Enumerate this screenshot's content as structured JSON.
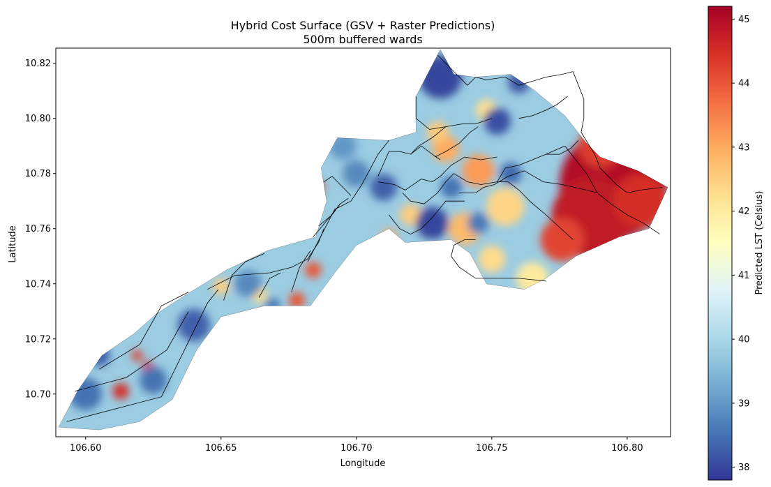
{
  "chart_data": {
    "type": "heatmap",
    "title": "Hybrid Cost Surface (GSV + Raster Predictions)",
    "subtitle": "500m buffered wards",
    "xlabel": "Longitude",
    "ylabel": "Latitude",
    "xlim": [
      106.589,
      106.816
    ],
    "ylim": [
      10.6845,
      10.8255
    ],
    "x_ticks": [
      106.6,
      106.65,
      106.7,
      106.75,
      106.8
    ],
    "x_tick_labels": [
      "106.60",
      "106.65",
      "106.70",
      "106.75",
      "106.80"
    ],
    "y_ticks": [
      10.7,
      10.72,
      10.74,
      10.76,
      10.78,
      10.8,
      10.82
    ],
    "y_tick_labels": [
      "10.70",
      "10.72",
      "10.74",
      "10.76",
      "10.78",
      "10.80",
      "10.82"
    ],
    "colorbar": {
      "label": "Predicted LST (Celsius)",
      "colormap": "RdYlBu_r",
      "range": [
        37.8,
        45.2
      ],
      "ticks": [
        38,
        39,
        40,
        41,
        42,
        43,
        44,
        45
      ],
      "tick_labels": [
        "38",
        "39",
        "40",
        "41",
        "42",
        "43",
        "44",
        "45"
      ],
      "colors": [
        "#313695",
        "#4575b4",
        "#74add1",
        "#abd9e9",
        "#e0f3f8",
        "#ffffbf",
        "#fee090",
        "#fdae61",
        "#f46d43",
        "#d73027",
        "#a50026"
      ]
    },
    "grid": false,
    "region_outline": [
      [
        106.59,
        10.688
      ],
      [
        106.597,
        10.701
      ],
      [
        106.606,
        10.714
      ],
      [
        106.618,
        10.722
      ],
      [
        106.626,
        10.729
      ],
      [
        106.637,
        10.736
      ],
      [
        106.652,
        10.745
      ],
      [
        106.667,
        10.752
      ],
      [
        106.685,
        10.757
      ],
      [
        106.689,
        10.77
      ],
      [
        106.687,
        10.782
      ],
      [
        106.693,
        10.793
      ],
      [
        106.712,
        10.792
      ],
      [
        106.722,
        10.795
      ],
      [
        106.722,
        10.808
      ],
      [
        106.731,
        10.825
      ],
      [
        106.736,
        10.816
      ],
      [
        106.744,
        10.815
      ],
      [
        106.757,
        10.816
      ],
      [
        106.766,
        10.81
      ],
      [
        106.777,
        10.801
      ],
      [
        106.785,
        10.791
      ],
      [
        106.79,
        10.786
      ],
      [
        106.804,
        10.781
      ],
      [
        106.815,
        10.775
      ],
      [
        106.808,
        10.76
      ],
      [
        106.797,
        10.757
      ],
      [
        106.781,
        10.75
      ],
      [
        106.77,
        10.742
      ],
      [
        106.762,
        10.738
      ],
      [
        106.748,
        10.74
      ],
      [
        106.742,
        10.751
      ],
      [
        106.735,
        10.756
      ],
      [
        106.718,
        10.755
      ],
      [
        106.712,
        10.76
      ],
      [
        106.7,
        10.754
      ],
      [
        106.692,
        10.744
      ],
      [
        106.683,
        10.732
      ],
      [
        106.666,
        10.732
      ],
      [
        106.65,
        10.728
      ],
      [
        106.641,
        10.716
      ],
      [
        106.632,
        10.698
      ],
      [
        106.62,
        10.69
      ],
      [
        106.605,
        10.687
      ],
      [
        106.59,
        10.688
      ]
    ],
    "ward_boundaries": [
      [
        [
          106.593,
          10.69
        ],
        [
          106.628,
          10.699
        ],
        [
          106.645,
          10.733
        ],
        [
          106.649,
          10.738
        ]
      ],
      [
        [
          106.596,
          10.701
        ],
        [
          106.615,
          10.706
        ],
        [
          106.63,
          10.716
        ],
        [
          106.638,
          10.73
        ]
      ],
      [
        [
          106.605,
          10.709
        ],
        [
          106.62,
          10.718
        ],
        [
          106.628,
          10.732
        ],
        [
          106.638,
          10.737
        ]
      ],
      [
        [
          106.645,
          10.738
        ],
        [
          106.655,
          10.743
        ],
        [
          106.668,
          10.744
        ],
        [
          106.676,
          10.746
        ],
        [
          106.682,
          10.749
        ],
        [
          106.686,
          10.755
        ],
        [
          106.688,
          10.76
        ]
      ],
      [
        [
          106.651,
          10.734
        ],
        [
          106.654,
          10.743
        ],
        [
          106.659,
          10.748
        ],
        [
          106.666,
          10.751
        ]
      ],
      [
        [
          106.664,
          10.735
        ],
        [
          106.668,
          10.742
        ],
        [
          106.672,
          10.744
        ]
      ],
      [
        [
          106.676,
          10.737
        ],
        [
          106.679,
          10.746
        ],
        [
          106.683,
          10.752
        ]
      ],
      [
        [
          106.682,
          10.748
        ],
        [
          106.692,
          10.767
        ],
        [
          106.698,
          10.77
        ],
        [
          106.702,
          10.776
        ],
        [
          106.708,
          10.787
        ],
        [
          106.712,
          10.792
        ]
      ],
      [
        [
          106.684,
          10.757
        ],
        [
          106.69,
          10.764
        ],
        [
          106.694,
          10.769
        ],
        [
          106.697,
          10.771
        ]
      ],
      [
        [
          106.686,
          10.761
        ],
        [
          106.691,
          10.765
        ],
        [
          106.694,
          10.769
        ]
      ],
      [
        [
          106.688,
          10.777
        ],
        [
          106.691,
          10.779
        ],
        [
          106.695,
          10.775
        ],
        [
          106.698,
          10.772
        ]
      ],
      [
        [
          106.708,
          10.779
        ],
        [
          106.712,
          10.788
        ],
        [
          106.716,
          10.788
        ],
        [
          106.72,
          10.787
        ],
        [
          106.723,
          10.79
        ]
      ],
      [
        [
          106.708,
          10.777
        ],
        [
          106.714,
          10.776
        ],
        [
          106.718,
          10.774
        ],
        [
          106.724,
          10.778
        ],
        [
          106.728,
          10.777
        ],
        [
          106.731,
          10.779
        ]
      ],
      [
        [
          106.72,
          10.787
        ],
        [
          106.724,
          10.79
        ],
        [
          106.728,
          10.787
        ],
        [
          106.731,
          10.785
        ]
      ],
      [
        [
          106.712,
          10.765
        ],
        [
          106.716,
          10.76
        ],
        [
          106.72,
          10.758
        ],
        [
          106.724,
          10.76
        ],
        [
          106.728,
          10.764
        ],
        [
          106.733,
          10.77
        ],
        [
          106.74,
          10.77
        ]
      ],
      [
        [
          106.717,
          10.773
        ],
        [
          106.72,
          10.77
        ],
        [
          106.725,
          10.769
        ],
        [
          106.73,
          10.773
        ],
        [
          106.733,
          10.777
        ],
        [
          106.736,
          10.78
        ]
      ],
      [
        [
          106.723,
          10.79
        ],
        [
          106.728,
          10.793
        ],
        [
          106.733,
          10.797
        ],
        [
          106.739,
          10.798
        ],
        [
          106.744,
          10.798
        ],
        [
          106.75,
          10.8
        ]
      ],
      [
        [
          106.729,
          10.786
        ],
        [
          106.733,
          10.788
        ],
        [
          106.738,
          10.791
        ],
        [
          106.742,
          10.795
        ],
        [
          106.745,
          10.797
        ]
      ],
      [
        [
          106.731,
          10.779
        ],
        [
          106.735,
          10.783
        ],
        [
          106.74,
          10.786
        ],
        [
          106.746,
          10.785
        ],
        [
          106.752,
          10.786
        ]
      ],
      [
        [
          106.736,
          10.78
        ],
        [
          106.741,
          10.777
        ],
        [
          106.746,
          10.776
        ],
        [
          106.752,
          10.777
        ],
        [
          106.756,
          10.777
        ]
      ],
      [
        [
          106.738,
          10.773
        ],
        [
          106.744,
          10.773
        ],
        [
          106.747,
          10.775
        ],
        [
          106.751,
          10.776
        ],
        [
          106.756,
          10.779
        ],
        [
          106.762,
          10.781
        ]
      ],
      [
        [
          106.744,
          10.756
        ],
        [
          106.74,
          10.756
        ],
        [
          106.736,
          10.754
        ],
        [
          106.735,
          10.75
        ],
        [
          106.738,
          10.746
        ],
        [
          106.744,
          10.742
        ],
        [
          106.752,
          10.742
        ],
        [
          106.76,
          10.742
        ],
        [
          106.77,
          10.741
        ]
      ],
      [
        [
          106.752,
          10.777
        ],
        [
          106.755,
          10.782
        ],
        [
          106.76,
          10.783
        ],
        [
          106.765,
          10.785
        ],
        [
          106.77,
          10.787
        ],
        [
          106.777,
          10.79
        ]
      ],
      [
        [
          106.756,
          10.777
        ],
        [
          106.76,
          10.774
        ],
        [
          106.764,
          10.77
        ],
        [
          106.77,
          10.765
        ],
        [
          106.78,
          10.756
        ]
      ],
      [
        [
          106.762,
          10.781
        ],
        [
          106.769,
          10.777
        ],
        [
          106.776,
          10.776
        ],
        [
          106.785,
          10.774
        ],
        [
          106.789,
          10.773
        ]
      ],
      [
        [
          106.77,
          10.787
        ],
        [
          106.775,
          10.787
        ],
        [
          106.779,
          10.789
        ],
        [
          106.782,
          10.792
        ]
      ],
      [
        [
          106.76,
          10.8
        ],
        [
          106.765,
          10.801
        ],
        [
          106.77,
          10.803
        ],
        [
          106.774,
          10.805
        ],
        [
          106.778,
          10.808
        ]
      ],
      [
        [
          106.744,
          10.815
        ],
        [
          106.748,
          10.814
        ],
        [
          106.755,
          10.815
        ],
        [
          106.76,
          10.812
        ],
        [
          106.77,
          10.815
        ],
        [
          106.776,
          10.816
        ],
        [
          106.78,
          10.817
        ]
      ],
      [
        [
          106.78,
          10.817
        ],
        [
          106.782,
          10.812
        ],
        [
          106.784,
          10.807
        ],
        [
          106.784,
          10.8
        ],
        [
          106.783,
          10.795
        ],
        [
          106.788,
          10.787
        ],
        [
          106.79,
          10.782
        ]
      ],
      [
        [
          106.79,
          10.782
        ],
        [
          106.796,
          10.776
        ],
        [
          106.8,
          10.773
        ],
        [
          106.805,
          10.774
        ],
        [
          106.813,
          10.775
        ]
      ],
      [
        [
          106.789,
          10.773
        ],
        [
          106.794,
          10.769
        ],
        [
          106.8,
          10.765
        ],
        [
          106.806,
          10.762
        ],
        [
          106.812,
          10.758
        ]
      ],
      [
        [
          106.777,
          10.79
        ],
        [
          106.785,
          10.78
        ],
        [
          106.789,
          10.773
        ]
      ],
      [
        [
          106.722,
          10.808
        ],
        [
          106.722,
          10.8
        ],
        [
          106.727,
          10.796
        ],
        [
          106.733,
          10.797
        ]
      ],
      [
        [
          106.73,
          10.823
        ],
        [
          106.735,
          10.818
        ],
        [
          106.741,
          10.812
        ],
        [
          106.744,
          10.815
        ]
      ]
    ],
    "hot_spots": [
      {
        "lon": 106.795,
        "lat": 10.776,
        "value": 45.0,
        "r": 0.02
      },
      {
        "lon": 106.787,
        "lat": 10.764,
        "value": 44.8,
        "r": 0.015
      },
      {
        "lon": 106.805,
        "lat": 10.77,
        "value": 44.5,
        "r": 0.01
      },
      {
        "lon": 106.79,
        "lat": 10.79,
        "value": 44.3,
        "r": 0.008
      },
      {
        "lon": 106.776,
        "lat": 10.756,
        "value": 44.2,
        "r": 0.008
      },
      {
        "lon": 106.745,
        "lat": 10.781,
        "value": 43.2,
        "r": 0.006
      },
      {
        "lon": 106.74,
        "lat": 10.76,
        "value": 42.8,
        "r": 0.006
      },
      {
        "lon": 106.755,
        "lat": 10.768,
        "value": 42.4,
        "r": 0.007
      },
      {
        "lon": 106.733,
        "lat": 10.789,
        "value": 43.0,
        "r": 0.005
      },
      {
        "lon": 106.73,
        "lat": 10.795,
        "value": 42.6,
        "r": 0.004
      },
      {
        "lon": 106.748,
        "lat": 10.803,
        "value": 42.2,
        "r": 0.004
      },
      {
        "lon": 106.72,
        "lat": 10.765,
        "value": 42.5,
        "r": 0.004
      },
      {
        "lon": 106.712,
        "lat": 10.757,
        "value": 43.0,
        "r": 0.003
      },
      {
        "lon": 106.686,
        "lat": 10.775,
        "value": 44.5,
        "r": 0.002
      },
      {
        "lon": 106.684,
        "lat": 10.745,
        "value": 44.0,
        "r": 0.003
      },
      {
        "lon": 106.678,
        "lat": 10.734,
        "value": 44.0,
        "r": 0.003
      },
      {
        "lon": 106.613,
        "lat": 10.701,
        "value": 44.5,
        "r": 0.003
      },
      {
        "lon": 106.623,
        "lat": 10.71,
        "value": 44.5,
        "r": 0.002
      },
      {
        "lon": 106.619,
        "lat": 10.714,
        "value": 44.3,
        "r": 0.002
      },
      {
        "lon": 106.65,
        "lat": 10.739,
        "value": 42.5,
        "r": 0.003
      },
      {
        "lon": 106.664,
        "lat": 10.736,
        "value": 42.2,
        "r": 0.003
      },
      {
        "lon": 106.75,
        "lat": 10.749,
        "value": 42.3,
        "r": 0.005
      },
      {
        "lon": 106.765,
        "lat": 10.742,
        "value": 42.0,
        "r": 0.006
      }
    ],
    "cool_spots": [
      {
        "lon": 106.731,
        "lat": 10.815,
        "value": 38.0,
        "r": 0.008
      },
      {
        "lon": 106.728,
        "lat": 10.762,
        "value": 38.0,
        "r": 0.006
      },
      {
        "lon": 106.752,
        "lat": 10.799,
        "value": 38.1,
        "r": 0.005
      },
      {
        "lon": 106.76,
        "lat": 10.813,
        "value": 38.2,
        "r": 0.004
      },
      {
        "lon": 106.71,
        "lat": 10.775,
        "value": 38.3,
        "r": 0.005
      },
      {
        "lon": 106.757,
        "lat": 10.78,
        "value": 38.4,
        "r": 0.004
      },
      {
        "lon": 106.735,
        "lat": 10.775,
        "value": 38.5,
        "r": 0.004
      },
      {
        "lon": 106.745,
        "lat": 10.762,
        "value": 38.6,
        "r": 0.004
      },
      {
        "lon": 106.7,
        "lat": 10.78,
        "value": 38.8,
        "r": 0.005
      },
      {
        "lon": 106.695,
        "lat": 10.79,
        "value": 39.0,
        "r": 0.005
      },
      {
        "lon": 106.64,
        "lat": 10.725,
        "value": 38.3,
        "r": 0.006
      },
      {
        "lon": 106.6,
        "lat": 10.7,
        "value": 38.5,
        "r": 0.006
      },
      {
        "lon": 106.625,
        "lat": 10.705,
        "value": 38.5,
        "r": 0.005
      },
      {
        "lon": 106.66,
        "lat": 10.74,
        "value": 38.8,
        "r": 0.005
      },
      {
        "lon": 106.605,
        "lat": 10.714,
        "value": 38.3,
        "r": 0.004
      },
      {
        "lon": 106.669,
        "lat": 10.732,
        "value": 38.6,
        "r": 0.003
      }
    ]
  }
}
